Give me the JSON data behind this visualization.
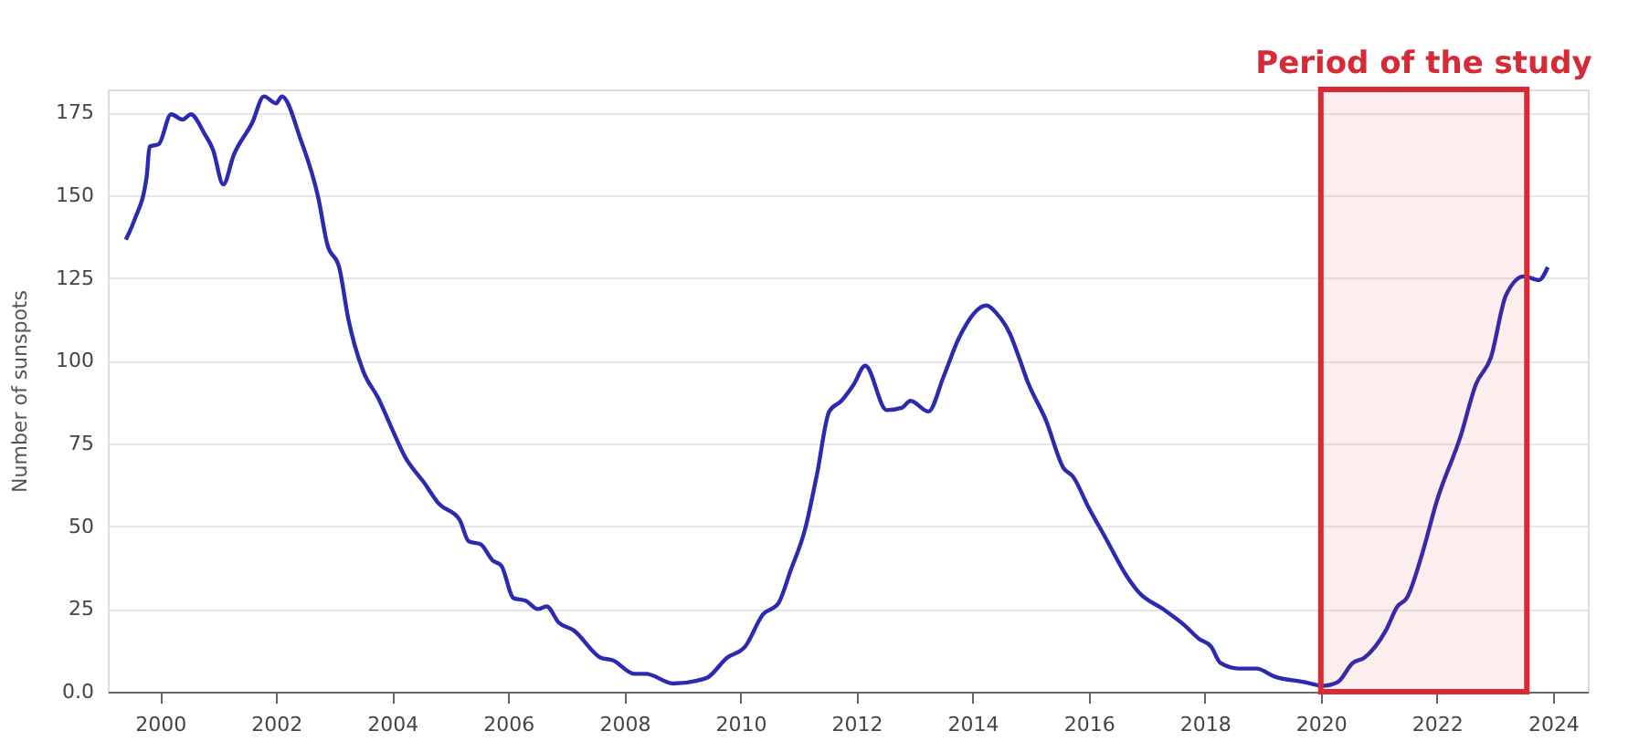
{
  "chart_data": {
    "type": "line",
    "ylabel": "Number of sunspots",
    "x": [
      1999.41,
      1999.56,
      1999.77,
      1999.82,
      1999.98,
      2000.19,
      2000.39,
      2000.53,
      2000.76,
      2000.91,
      2001.09,
      2001.27,
      2001.59,
      2001.79,
      2002.0,
      2002.1,
      2002.42,
      2002.73,
      2002.88,
      2003.09,
      2003.24,
      2003.5,
      2003.76,
      2003.97,
      2004.23,
      2004.54,
      2004.8,
      2005.16,
      2005.32,
      2005.52,
      2005.73,
      2005.88,
      2006.09,
      2006.3,
      2006.51,
      2006.66,
      2006.87,
      2007.13,
      2007.59,
      2007.8,
      2008.17,
      2008.37,
      2008.84,
      2009.41,
      2009.77,
      2010.08,
      2010.39,
      2010.65,
      2010.86,
      2011.12,
      2011.32,
      2011.53,
      2011.74,
      2011.95,
      2012.15,
      2012.52,
      2012.78,
      2012.93,
      2013.24,
      2013.5,
      2013.76,
      2014.24,
      2014.42,
      2014.64,
      2014.8,
      2014.95,
      2015.26,
      2015.57,
      2015.73,
      2015.99,
      2016.3,
      2016.66,
      2016.87,
      2017.28,
      2017.65,
      2017.9,
      2018.11,
      2018.27,
      2018.58,
      2018.89,
      2019.2,
      2019.72,
      2020.03,
      2020.29,
      2020.55,
      2020.75,
      2021.12,
      2021.32,
      2021.48,
      2021.74,
      2022.0,
      2022.41,
      2022.67,
      2022.93,
      2023.19,
      2023.5,
      2023.76,
      2023.91
    ],
    "series": [
      {
        "color": "#2b2bb0",
        "values": [
          136.6,
          142.6,
          155.7,
          164.7,
          165.5,
          174.5,
          172.9,
          174.5,
          168.8,
          163.9,
          153.3,
          162.2,
          172,
          179.9,
          177.8,
          179.9,
          167,
          149,
          135.3,
          128,
          113,
          96.9,
          88.7,
          80.5,
          70.7,
          63.4,
          56.9,
          52,
          45.4,
          44.6,
          39.7,
          38.1,
          28.3,
          27.5,
          25,
          25.8,
          20.9,
          18.5,
          10.3,
          9.5,
          5.4,
          5.4,
          2.5,
          4.1,
          10.3,
          13.6,
          23.4,
          26.6,
          36.4,
          49.5,
          65.8,
          84.7,
          87.9,
          92.8,
          98.5,
          85.1,
          85.8,
          87.9,
          84.7,
          95.2,
          106.7,
          116.7,
          114.2,
          108.3,
          101,
          93.6,
          82.2,
          67.5,
          65,
          56,
          46.2,
          34.8,
          29.9,
          25,
          20.1,
          16,
          13.6,
          8.7,
          7,
          7,
          4.6,
          2.9,
          1.8,
          2.9,
          8.7,
          10.3,
          18.5,
          25.8,
          28.3,
          41.3,
          57.7,
          77.3,
          92.8,
          101,
          119.8,
          125.5,
          124.4,
          128.3
        ]
      }
    ],
    "xlim": [
      1999.1,
      2024.6
    ],
    "xticks": [
      2000,
      2002,
      2004,
      2006,
      2008,
      2010,
      2012,
      2014,
      2016,
      2018,
      2020,
      2022,
      2024
    ],
    "ylim": [
      0,
      182
    ],
    "yticks": [
      {
        "value": 0,
        "label": "0.0"
      },
      25,
      50,
      75,
      100,
      125,
      150,
      175
    ],
    "bands": [
      {
        "axis": "x",
        "from": 2020,
        "to": 2023.55,
        "label": "Period of the study",
        "color": "#d62a36"
      }
    ],
    "grid": "y",
    "marker": "none",
    "line_style": "solid"
  }
}
